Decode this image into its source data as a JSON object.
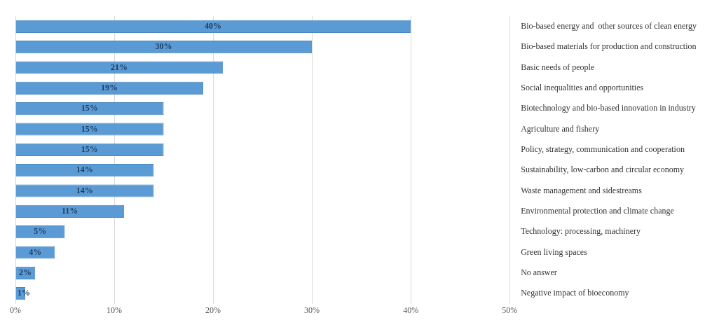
{
  "chart_data": {
    "type": "bar",
    "orientation": "horizontal",
    "categories": [
      "Bio-based energy and  other sources of clean energy",
      "Bio-based materials for production and construction",
      "Basic needs of people",
      "Social inequalities and opportunities",
      "Biotechnology and bio-based innovation in industry",
      "Agriculture and fishery",
      "Policy, strategy, communication and cooperation",
      "Sustainability, low-carbon and circular economy",
      "Waste management and sidestreams",
      "Environmental protection and climate change",
      "Technology: processing, machinery",
      "Green living spaces",
      "No answer",
      "Negative impact of bioeconomy"
    ],
    "values": [
      40,
      30,
      21,
      19,
      15,
      15,
      15,
      14,
      14,
      11,
      5,
      4,
      2,
      1
    ],
    "value_labels": [
      "40%",
      "30%",
      "21%",
      "19%",
      "15%",
      "15%",
      "15%",
      "14%",
      "14%",
      "11%",
      "5%",
      "4%",
      "2%",
      "1%"
    ],
    "color": "#5b9bd5",
    "xlim": [
      0,
      50
    ],
    "xticks": [
      {
        "value": 0,
        "label": "0%"
      },
      {
        "value": 10,
        "label": "10%"
      },
      {
        "value": 20,
        "label": "20%"
      },
      {
        "value": 30,
        "label": "30%"
      },
      {
        "value": 40,
        "label": "40%"
      },
      {
        "value": 50,
        "label": "50%"
      }
    ],
    "grid": "x",
    "legend": false
  }
}
